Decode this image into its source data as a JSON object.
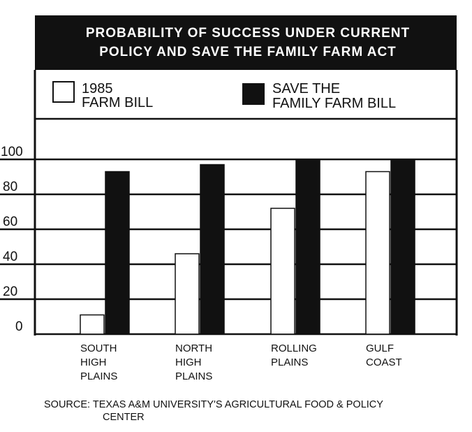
{
  "chart_data": {
    "type": "bar",
    "title": [
      "PROBABILITY OF SUCCESS UNDER CURRENT",
      "POLICY AND SAVE THE FAMILY FARM ACT"
    ],
    "categories": [
      [
        "SOUTH",
        "HIGH",
        "PLAINS"
      ],
      [
        "NORTH",
        "HIGH",
        "PLAINS"
      ],
      [
        "ROLLING",
        "PLAINS"
      ],
      [
        "GULF",
        "COAST"
      ]
    ],
    "series": [
      {
        "name": [
          "1985",
          "FARM BILL"
        ],
        "values": [
          11,
          46,
          72,
          93
        ],
        "color": "#ffffff"
      },
      {
        "name": [
          "SAVE THE",
          "FAMILY FARM BILL"
        ],
        "values": [
          93,
          97,
          100,
          100
        ],
        "color": "#111111"
      }
    ],
    "yticks": [
      "0",
      "20",
      "40",
      "60",
      "80",
      "100"
    ],
    "ylim": [
      0,
      120
    ],
    "grid": true,
    "legend_position": "top"
  },
  "source": [
    "SOURCE:  TEXAS A&M UNIVERSITY'S AGRICULTURAL FOOD & POLICY",
    "CENTER"
  ]
}
